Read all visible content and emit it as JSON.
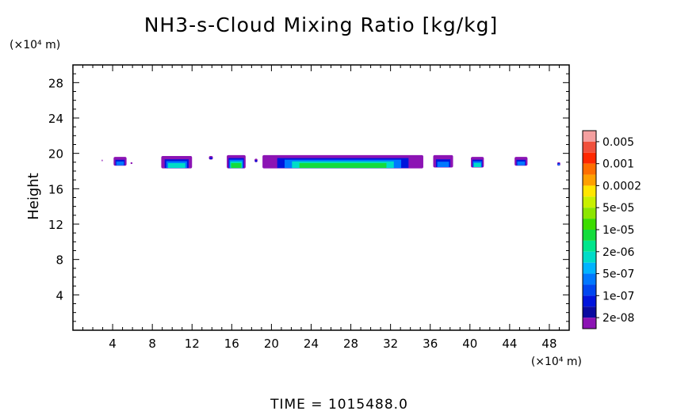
{
  "chart_data": {
    "type": "heatmap",
    "title": "NH3-s-Cloud Mixing Ratio [kg/kg]",
    "ylabel": "Height",
    "xunit": "(×10⁴ m)",
    "yunit": "(×10⁴ m)",
    "footer": "TIME = 1015488.0",
    "xlim": [
      0,
      50
    ],
    "ylim": [
      0,
      30
    ],
    "xticks": [
      4,
      8,
      12,
      16,
      20,
      24,
      28,
      32,
      36,
      40,
      44,
      48
    ],
    "yticks": [
      4,
      8,
      12,
      16,
      20,
      24,
      28
    ],
    "colorbar": {
      "labels": [
        "0.005",
        "0.001",
        "0.0002",
        "5e-05",
        "1e-05",
        "2e-06",
        "5e-07",
        "1e-07",
        "2e-08"
      ],
      "colors": [
        "#f4a0a0",
        "#f0503c",
        "#ff2800",
        "#ff6e00",
        "#ffa000",
        "#ffe600",
        "#c8f000",
        "#8ce600",
        "#3cdc00",
        "#14dc3c",
        "#00e68c",
        "#00dcc8",
        "#00b4ff",
        "#0078ff",
        "#0046f0",
        "#0014dc",
        "#0a0aa0",
        "#8c14b4"
      ]
    },
    "cloud_regions": [
      {
        "x": [
          2.9,
          3.0
        ],
        "y": [
          19.1,
          19.3
        ],
        "max_level": "2e-08"
      },
      {
        "x": [
          4.1,
          5.4
        ],
        "y": [
          18.6,
          19.6
        ],
        "max_level": "5e-07"
      },
      {
        "x": [
          5.8,
          6.0
        ],
        "y": [
          18.8,
          19.0
        ],
        "max_level": "2e-08"
      },
      {
        "x": [
          8.9,
          12.0
        ],
        "y": [
          18.3,
          19.7
        ],
        "max_level": "2e-06"
      },
      {
        "x": [
          13.7,
          14.1
        ],
        "y": [
          19.3,
          19.7
        ],
        "max_level": "1e-07"
      },
      {
        "x": [
          15.5,
          17.4
        ],
        "y": [
          18.3,
          19.8
        ],
        "max_level": "1e-05"
      },
      {
        "x": [
          18.3,
          18.6
        ],
        "y": [
          19.0,
          19.4
        ],
        "max_level": "1e-07"
      },
      {
        "x": [
          19.1,
          35.3
        ],
        "y": [
          18.3,
          19.8
        ],
        "max_level": "1e-05"
      },
      {
        "x": [
          36.3,
          38.3
        ],
        "y": [
          18.4,
          19.8
        ],
        "max_level": "5e-07"
      },
      {
        "x": [
          40.1,
          41.4
        ],
        "y": [
          18.4,
          19.6
        ],
        "max_level": "2e-06"
      },
      {
        "x": [
          44.5,
          45.8
        ],
        "y": [
          18.6,
          19.6
        ],
        "max_level": "5e-07"
      },
      {
        "x": [
          48.8,
          49.1
        ],
        "y": [
          18.6,
          19.0
        ],
        "max_level": "5e-07"
      }
    ]
  }
}
